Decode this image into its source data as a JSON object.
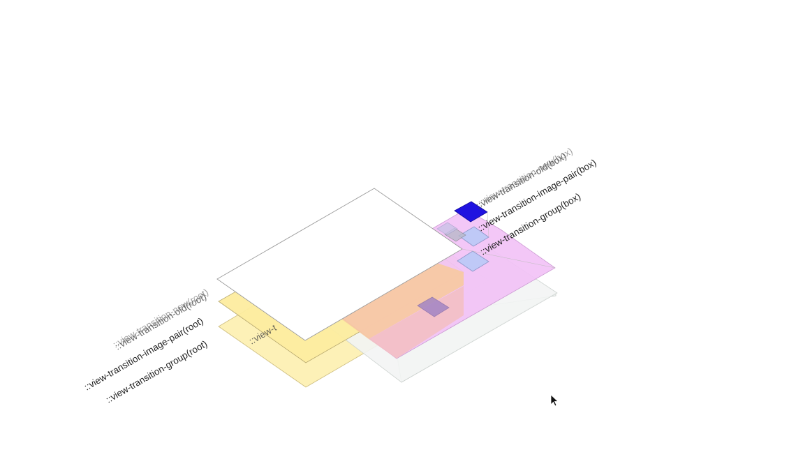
{
  "labels": {
    "root_group": "::view-transition-group(root)",
    "root_image_pair": "::view-transition-image-pair(root)",
    "root_old": "::view-transition-old(root)",
    "root_new": "::view-transition-new(root)",
    "root_inner_partial": "::view-t",
    "box_group": "::view-transition-group(box)",
    "box_image_pair": "::view-transition-image-pair(box)",
    "box_old": "::view-transition-old(box)",
    "box_new": "::view-transition-new(box)"
  },
  "colors": {
    "root_group_fill": "#fdf1b4",
    "root_image_pair_fill": "#fdeda0",
    "root_old_fill": "#ffffff",
    "box_group_fill": "#f2c3f7",
    "box_image_pair_fill": "#f3f5f4",
    "box_square_fill": "#1f12e0",
    "box_small_fill": "#bfc9f7",
    "overlap_orange": "#f7c9a0",
    "overlap_pink": "#f3bfc4",
    "outline": "#8a8a8a",
    "cursor": "#111111"
  },
  "icons": {
    "cursor": "mouse-pointer-icon"
  }
}
